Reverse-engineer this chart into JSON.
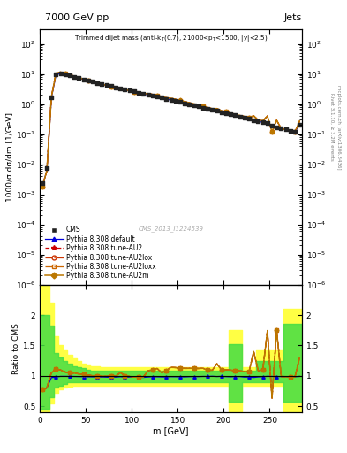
{
  "title_top": "7000 GeV pp",
  "title_right": "Jets",
  "xlabel": "m [GeV]",
  "ylabel_main": "1000/σ dσ/dm [1/GeV]",
  "ylabel_ratio": "Ratio to CMS",
  "watermark": "CMS_2013_I1224539",
  "rivet_text": "Rivet 3.1.10, ≥ 3.2M events",
  "mcplots_text": "mcplots.cern.ch [arXiv:1306.3436]",
  "cms_data_x": [
    2.5,
    7.5,
    12.5,
    17.5,
    22.5,
    27.5,
    32.5,
    37.5,
    42.5,
    47.5,
    52.5,
    57.5,
    62.5,
    67.5,
    72.5,
    77.5,
    82.5,
    87.5,
    92.5,
    97.5,
    102.5,
    107.5,
    112.5,
    117.5,
    122.5,
    127.5,
    132.5,
    137.5,
    142.5,
    147.5,
    152.5,
    157.5,
    162.5,
    167.5,
    172.5,
    177.5,
    182.5,
    187.5,
    192.5,
    197.5,
    202.5,
    207.5,
    212.5,
    217.5,
    222.5,
    227.5,
    232.5,
    237.5,
    242.5,
    247.5,
    252.5,
    257.5,
    262.5,
    267.5,
    272.5,
    277.5,
    282.5
  ],
  "cms_data_y": [
    0.0023,
    0.0075,
    1.65,
    9.5,
    10.5,
    9.8,
    8.9,
    8.1,
    7.3,
    6.65,
    6.05,
    5.5,
    5.05,
    4.65,
    4.25,
    3.9,
    3.6,
    3.3,
    3.05,
    2.82,
    2.61,
    2.41,
    2.23,
    2.06,
    1.9,
    1.75,
    1.62,
    1.49,
    1.37,
    1.26,
    1.17,
    1.07,
    0.98,
    0.9,
    0.83,
    0.76,
    0.7,
    0.64,
    0.59,
    0.54,
    0.5,
    0.46,
    0.42,
    0.385,
    0.36,
    0.33,
    0.29,
    0.27,
    0.25,
    0.23,
    0.185,
    0.165,
    0.155,
    0.145,
    0.13,
    0.12,
    0.21
  ],
  "mc_x": [
    2.5,
    7.5,
    12.5,
    17.5,
    22.5,
    27.5,
    32.5,
    37.5,
    42.5,
    47.5,
    52.5,
    57.5,
    62.5,
    67.5,
    72.5,
    77.5,
    82.5,
    87.5,
    92.5,
    97.5,
    102.5,
    107.5,
    112.5,
    117.5,
    122.5,
    127.5,
    132.5,
    137.5,
    142.5,
    147.5,
    152.5,
    157.5,
    162.5,
    167.5,
    172.5,
    177.5,
    182.5,
    187.5,
    192.5,
    197.5,
    202.5,
    207.5,
    212.5,
    217.5,
    222.5,
    227.5,
    232.5,
    237.5,
    242.5,
    247.5,
    252.5,
    257.5,
    262.5,
    267.5,
    272.5,
    277.5,
    282.5
  ],
  "default_y": [
    0.0018,
    0.006,
    1.6,
    9.3,
    10.4,
    9.7,
    8.8,
    8.0,
    7.2,
    6.55,
    5.95,
    5.4,
    4.95,
    4.55,
    4.15,
    3.82,
    3.52,
    3.25,
    2.98,
    2.76,
    2.55,
    2.35,
    2.17,
    2.02,
    1.87,
    1.72,
    1.59,
    1.46,
    1.35,
    1.24,
    1.15,
    1.05,
    0.965,
    0.888,
    0.818,
    0.752,
    0.692,
    0.635,
    0.582,
    0.535,
    0.493,
    0.452,
    0.414,
    0.38,
    0.352,
    0.323,
    0.282,
    0.265,
    0.246,
    0.228,
    0.183,
    0.163,
    0.153,
    0.143,
    0.128,
    0.118,
    0.208
  ],
  "au2_y": [
    0.0018,
    0.006,
    1.73,
    10.6,
    11.5,
    10.4,
    9.34,
    8.44,
    7.52,
    6.79,
    6.11,
    5.5,
    5.05,
    4.6,
    4.21,
    3.86,
    3.57,
    3.47,
    3.05,
    2.79,
    2.55,
    2.36,
    2.18,
    2.23,
    2.09,
    1.96,
    1.7,
    1.62,
    1.56,
    1.43,
    1.32,
    1.2,
    1.1,
    1.01,
    0.93,
    0.854,
    0.766,
    0.698,
    0.707,
    0.594,
    0.55,
    0.503,
    0.454,
    0.416,
    0.385,
    0.352,
    0.406,
    0.292,
    0.275,
    0.401,
    0.117,
    0.289,
    0.153,
    0.143,
    0.128,
    0.118,
    0.273
  ],
  "ratio_x": [
    2.5,
    7.5,
    12.5,
    17.5,
    22.5,
    27.5,
    32.5,
    37.5,
    42.5,
    47.5,
    52.5,
    57.5,
    62.5,
    67.5,
    72.5,
    77.5,
    82.5,
    87.5,
    92.5,
    97.5,
    102.5,
    107.5,
    112.5,
    117.5,
    122.5,
    127.5,
    132.5,
    137.5,
    142.5,
    147.5,
    152.5,
    157.5,
    162.5,
    167.5,
    172.5,
    177.5,
    182.5,
    187.5,
    192.5,
    197.5,
    202.5,
    207.5,
    212.5,
    217.5,
    222.5,
    227.5,
    232.5,
    237.5,
    242.5,
    247.5,
    252.5,
    257.5,
    262.5,
    267.5,
    272.5,
    277.5,
    282.5
  ],
  "ratio_default": [
    0.78,
    0.8,
    0.97,
    0.979,
    0.99,
    0.99,
    0.989,
    0.988,
    0.986,
    0.985,
    0.983,
    0.982,
    0.98,
    0.979,
    0.977,
    0.979,
    0.978,
    0.985,
    0.977,
    0.979,
    0.977,
    0.975,
    0.973,
    0.98,
    0.984,
    0.983,
    0.981,
    0.98,
    0.985,
    0.984,
    0.983,
    0.981,
    0.985,
    0.987,
    0.986,
    0.989,
    0.989,
    0.992,
    0.987,
    0.991,
    0.986,
    0.983,
    0.986,
    0.987,
    0.978,
    0.979,
    0.972,
    0.981,
    0.984,
    0.991,
    0.989,
    0.988,
    0.987,
    0.986,
    0.985,
    0.983,
    0.99
  ],
  "ratio_au2": [
    0.78,
    0.8,
    1.05,
    1.115,
    1.095,
    1.061,
    1.049,
    1.042,
    1.03,
    1.021,
    1.01,
    1.0,
    0.999,
    0.989,
    0.991,
    1.0,
    0.992,
    1.052,
    1.0,
    0.989,
    0.978,
    0.979,
    0.978,
    1.082,
    1.1,
    1.12,
    1.049,
    1.088,
    1.138,
    1.135,
    1.128,
    1.121,
    1.122,
    1.122,
    1.12,
    1.123,
    1.095,
    1.091,
    1.198,
    1.1,
    1.1,
    1.093,
    1.081,
    1.081,
    1.069,
    1.067,
    1.4,
    1.082,
    1.1,
    1.745,
    0.632,
    1.752,
    0.988,
    0.986,
    0.985,
    0.983,
    1.3
  ],
  "ratio_au2lox": [
    0.78,
    0.8,
    1.05,
    1.115,
    1.095,
    1.061,
    1.049,
    1.042,
    1.03,
    1.021,
    1.01,
    1.0,
    0.999,
    0.989,
    0.991,
    1.0,
    0.992,
    1.052,
    1.0,
    0.989,
    0.978,
    0.979,
    0.978,
    1.082,
    1.1,
    1.12,
    1.049,
    1.088,
    1.138,
    1.135,
    1.128,
    1.121,
    1.122,
    1.122,
    1.12,
    1.123,
    1.095,
    1.091,
    1.198,
    1.1,
    1.1,
    1.093,
    1.081,
    1.081,
    1.069,
    1.067,
    1.4,
    1.082,
    1.1,
    1.745,
    0.632,
    1.752,
    0.988,
    0.986,
    0.985,
    0.983,
    1.3
  ],
  "ratio_au2loxx": [
    0.78,
    0.8,
    1.05,
    1.115,
    1.095,
    1.061,
    1.049,
    1.042,
    1.03,
    1.021,
    1.01,
    1.0,
    0.999,
    0.989,
    0.991,
    1.0,
    0.992,
    1.052,
    1.0,
    0.989,
    0.978,
    0.979,
    0.978,
    1.082,
    1.1,
    1.12,
    1.049,
    1.088,
    1.138,
    1.135,
    1.128,
    1.121,
    1.122,
    1.122,
    1.12,
    1.123,
    1.095,
    1.091,
    1.198,
    1.1,
    1.1,
    1.093,
    1.081,
    1.081,
    1.069,
    1.067,
    1.4,
    1.082,
    1.1,
    1.745,
    0.632,
    1.752,
    0.988,
    0.986,
    0.985,
    0.983,
    1.3
  ],
  "ratio_au2m": [
    0.78,
    0.8,
    1.05,
    1.115,
    1.095,
    1.061,
    1.049,
    1.042,
    1.03,
    1.021,
    1.01,
    1.0,
    0.999,
    0.989,
    0.991,
    1.0,
    0.992,
    1.052,
    1.0,
    0.989,
    0.978,
    0.979,
    0.978,
    1.082,
    1.1,
    1.12,
    1.049,
    1.088,
    1.138,
    1.135,
    1.128,
    1.121,
    1.122,
    1.122,
    1.12,
    1.123,
    1.095,
    1.091,
    1.198,
    1.1,
    1.1,
    1.093,
    1.081,
    1.081,
    1.069,
    1.067,
    1.4,
    1.082,
    1.1,
    1.745,
    0.632,
    1.752,
    0.988,
    0.986,
    0.985,
    0.983,
    1.3
  ],
  "yellow_band_lo": [
    0.35,
    0.35,
    0.35,
    0.55,
    0.72,
    0.78,
    0.8,
    0.82,
    0.84,
    0.84,
    0.84,
    0.84,
    0.84,
    0.84,
    0.84,
    0.84,
    0.84,
    0.84,
    0.84,
    0.84,
    0.84,
    0.84,
    0.84,
    0.84,
    0.84,
    0.84,
    0.84,
    0.84,
    0.84,
    0.84,
    0.84,
    0.84,
    0.84,
    0.84,
    0.84,
    0.84,
    0.84,
    0.84,
    0.84,
    0.84,
    0.84,
    0.84,
    0.41,
    0.41,
    0.41,
    0.84,
    0.84,
    0.84,
    0.84,
    0.84,
    0.84,
    0.84,
    0.84,
    0.84,
    0.4,
    0.4,
    0.4
  ],
  "yellow_band_hi": [
    2.5,
    2.5,
    2.5,
    2.2,
    1.65,
    1.5,
    1.42,
    1.34,
    1.28,
    1.24,
    1.2,
    1.18,
    1.16,
    1.15,
    1.14,
    1.14,
    1.14,
    1.14,
    1.14,
    1.14,
    1.14,
    1.14,
    1.14,
    1.14,
    1.14,
    1.14,
    1.14,
    1.14,
    1.14,
    1.14,
    1.14,
    1.14,
    1.14,
    1.14,
    1.14,
    1.14,
    1.14,
    1.14,
    1.14,
    1.14,
    1.14,
    1.14,
    1.75,
    1.75,
    1.75,
    1.14,
    1.14,
    1.14,
    1.42,
    1.42,
    1.42,
    1.42,
    1.42,
    1.42,
    2.1,
    2.1,
    2.1
  ],
  "green_band_lo": [
    0.45,
    0.45,
    0.45,
    0.65,
    0.8,
    0.84,
    0.87,
    0.89,
    0.9,
    0.9,
    0.9,
    0.9,
    0.9,
    0.9,
    0.9,
    0.9,
    0.9,
    0.9,
    0.9,
    0.9,
    0.9,
    0.9,
    0.9,
    0.9,
    0.9,
    0.9,
    0.9,
    0.9,
    0.9,
    0.9,
    0.9,
    0.9,
    0.9,
    0.9,
    0.9,
    0.9,
    0.9,
    0.9,
    0.9,
    0.9,
    0.9,
    0.9,
    0.58,
    0.58,
    0.58,
    0.9,
    0.9,
    0.9,
    0.9,
    0.9,
    0.9,
    0.9,
    0.9,
    0.9,
    0.58,
    0.58,
    0.58
  ],
  "green_band_hi": [
    2.0,
    2.0,
    2.0,
    1.82,
    1.38,
    1.3,
    1.25,
    1.2,
    1.16,
    1.14,
    1.12,
    1.1,
    1.09,
    1.09,
    1.09,
    1.09,
    1.09,
    1.09,
    1.09,
    1.09,
    1.09,
    1.09,
    1.09,
    1.09,
    1.09,
    1.09,
    1.09,
    1.09,
    1.09,
    1.09,
    1.09,
    1.09,
    1.09,
    1.09,
    1.09,
    1.09,
    1.09,
    1.09,
    1.09,
    1.09,
    1.09,
    1.09,
    1.52,
    1.52,
    1.52,
    1.09,
    1.09,
    1.09,
    1.25,
    1.25,
    1.25,
    1.25,
    1.25,
    1.25,
    1.85,
    1.85,
    1.85
  ],
  "ylim_main": [
    1e-06,
    300.0
  ],
  "ylim_ratio": [
    0.4,
    2.5
  ],
  "xlim": [
    0,
    285
  ],
  "colors": {
    "cms_data": "#222222",
    "default": "#0000dd",
    "au2": "#cc0000",
    "au2lox": "#cc3300",
    "au2loxx": "#cc6600",
    "au2m": "#bb7700",
    "yellow_band": "#ffff44",
    "green_band": "#44dd44"
  },
  "legend_entries": [
    "CMS",
    "Pythia 8.308 default",
    "Pythia 8.308 tune-AU2",
    "Pythia 8.308 tune-AU2lox",
    "Pythia 8.308 tune-AU2loxx",
    "Pythia 8.308 tune-AU2m"
  ]
}
